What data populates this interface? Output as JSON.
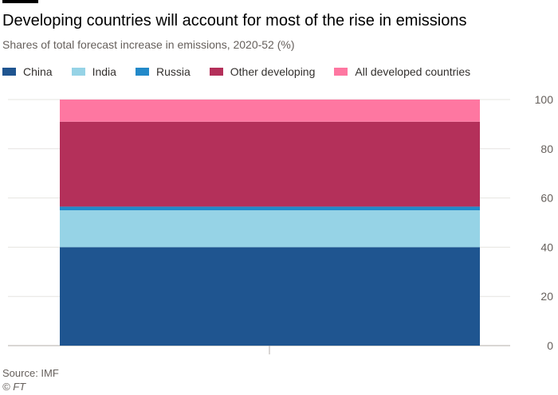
{
  "header": {
    "title": "Developing countries will account for most of the rise in emissions",
    "subtitle": "Shares of total forecast increase in emissions, 2020-52 (%)"
  },
  "footer": {
    "source": "Source: IMF",
    "credit": "© FT"
  },
  "colors": {
    "China": "#1f5590",
    "India": "#96d3e6",
    "Russia": "#2289c9",
    "Other developing": "#b4305a",
    "All developed countries": "#fe77a1",
    "gridline": "#e6e4e1",
    "axis_text": "#66605c"
  },
  "chart_data": {
    "type": "bar",
    "stacked": true,
    "title": "Developing countries will account for most of the rise in emissions",
    "subtitle": "Shares of total forecast increase in emissions, 2020-52 (%)",
    "categories": [
      ""
    ],
    "series": [
      {
        "name": "China",
        "values": [
          40
        ]
      },
      {
        "name": "India",
        "values": [
          15
        ]
      },
      {
        "name": "Russia",
        "values": [
          1.5
        ]
      },
      {
        "name": "Other developing",
        "values": [
          34.5
        ]
      },
      {
        "name": "All developed countries",
        "values": [
          9
        ]
      }
    ],
    "ylim": [
      0,
      100
    ],
    "yticks": [
      0,
      20,
      40,
      60,
      80,
      100
    ],
    "yaxis_side": "right",
    "grid": true,
    "legend": "top-left",
    "xlabel": "",
    "ylabel": ""
  }
}
